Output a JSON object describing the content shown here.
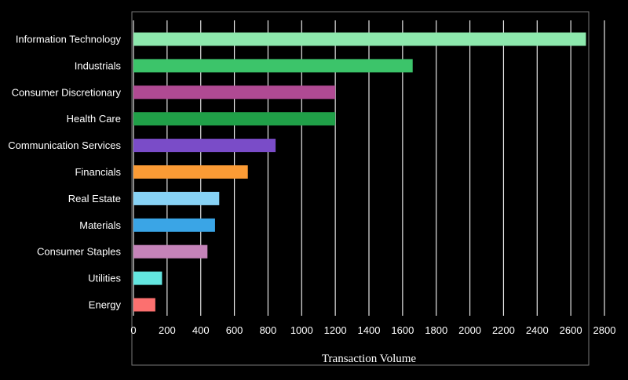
{
  "chart_data": {
    "type": "bar",
    "orientation": "horizontal",
    "xlabel": "Transaction Volume",
    "ylabel": "",
    "xlim": [
      0,
      2800
    ],
    "xticks": [
      0,
      200,
      400,
      600,
      800,
      1000,
      1200,
      1400,
      1600,
      1800,
      2000,
      2200,
      2400,
      2600,
      2800
    ],
    "grid": "vertical",
    "categories": [
      "Information Technology",
      "Industrials",
      "Consumer Discretionary",
      "Health Care",
      "Communication Services",
      "Financials",
      "Real Estate",
      "Materials",
      "Consumer Staples",
      "Utilities",
      "Energy"
    ],
    "values": [
      2690,
      1660,
      1200,
      1200,
      845,
      680,
      510,
      485,
      440,
      170,
      130
    ],
    "colors": [
      "#8de8ad",
      "#3cc46a",
      "#b04a93",
      "#20a048",
      "#7a4cc8",
      "#fb9b35",
      "#87d2f5",
      "#3aa5e6",
      "#c583b9",
      "#63e6e0",
      "#fc706f"
    ]
  }
}
